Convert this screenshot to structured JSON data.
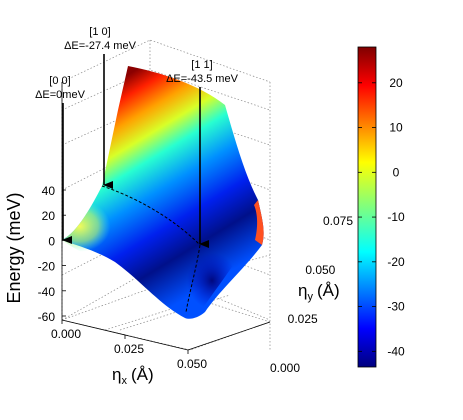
{
  "chart_data": {
    "type": "surface",
    "title": "",
    "zlabel": "Energy (meV)",
    "xlabel_main": "η",
    "xlabel_sub": "x",
    "xlabel_unit": "(Å)",
    "ylabel_main": "η",
    "ylabel_sub": "y",
    "ylabel_unit": "(Å)",
    "x_ticks": [
      "0.000",
      "0.025",
      "0.050"
    ],
    "y_ticks": [
      "0.000",
      "0.025",
      "0.050",
      "0.075"
    ],
    "z_ticks": [
      "40",
      "20",
      "0",
      "-20",
      "-40",
      "-60"
    ],
    "xlim": [
      0,
      0.075
    ],
    "ylim": [
      0,
      0.075
    ],
    "zlim": [
      -60,
      40
    ],
    "colorbar": {
      "ticks": [
        "20",
        "10",
        "0",
        "-10",
        "-20",
        "-30",
        "-40"
      ],
      "range": [
        -43.5,
        28
      ]
    },
    "points": [
      {
        "name": "[0 0]",
        "label": "ΔE=0meV",
        "x": 0,
        "y": 0,
        "energy": 0
      },
      {
        "name": "[1 0]",
        "label": "ΔE=-27.4 meV",
        "x": 0.05,
        "y": 0,
        "energy": -27.4
      },
      {
        "name": "[1 1]",
        "label": "ΔE=-43.5 meV",
        "x": 0.05,
        "y": 0.05,
        "energy": -43.5
      }
    ],
    "grid": true,
    "colormap": "jet"
  }
}
